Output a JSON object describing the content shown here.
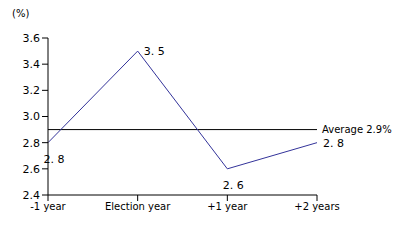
{
  "chart_data": {
    "type": "line",
    "y_label": "(%)",
    "categories": [
      "-1 year",
      "Election year",
      "+1 year",
      "+2 years"
    ],
    "values": [
      2.8,
      3.5,
      2.6,
      2.8
    ],
    "value_labels": [
      "2. 8",
      "3. 5",
      "2. 6",
      "2. 8"
    ],
    "data_labels": true,
    "color": "#33339a",
    "ylim": [
      2.4,
      3.6
    ],
    "yticks": [
      2.4,
      2.6,
      2.8,
      {
        "value": 3,
        "label": "3.0"
      },
      3.2,
      3.4,
      3.6
    ],
    "grid": false,
    "reference_line": {
      "value": 2.9,
      "label": "Average 2.9%"
    }
  }
}
